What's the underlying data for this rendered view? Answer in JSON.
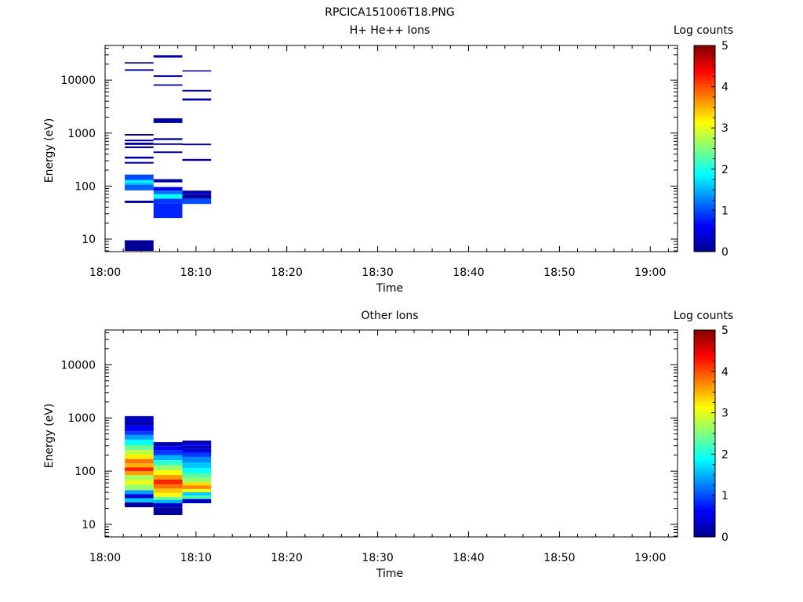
{
  "figure_title": "RPCICA151006T18.PNG",
  "chart_data": [
    {
      "type": "heatmap",
      "title": "H+ He++ Ions",
      "xlabel": "Time",
      "ylabel": "Energy (eV)",
      "y_scale": "log",
      "ylim": [
        5.8,
        45000
      ],
      "xlim": [
        "18:00",
        "19:03"
      ],
      "x_ticks": [
        "18:00",
        "18:10",
        "18:20",
        "18:30",
        "18:40",
        "18:50",
        "19:00"
      ],
      "y_ticks": [
        "10",
        "100",
        "1000",
        "10000"
      ],
      "colorbar": {
        "label": "Log counts",
        "range": [
          0,
          5
        ],
        "ticks": [
          "0",
          "1",
          "2",
          "3",
          "4",
          "5"
        ]
      },
      "columns": [
        {
          "t_start": "18:02:10",
          "t_end": "18:05:20",
          "cells": [
            {
              "e_low": 6,
              "e_high": 9.5,
              "log_counts": 0.05
            },
            {
              "e_low": 48,
              "e_high": 53,
              "log_counts": 0.1
            },
            {
              "e_low": 83,
              "e_high": 105,
              "log_counts": 1.1
            },
            {
              "e_low": 105,
              "e_high": 115,
              "log_counts": 1.5
            },
            {
              "e_low": 115,
              "e_high": 130,
              "log_counts": 1.8
            },
            {
              "e_low": 130,
              "e_high": 165,
              "log_counts": 1.0
            },
            {
              "e_low": 265,
              "e_high": 285,
              "log_counts": 0.1
            },
            {
              "e_low": 330,
              "e_high": 360,
              "log_counts": 0.1
            },
            {
              "e_low": 520,
              "e_high": 560,
              "log_counts": 0.1
            },
            {
              "e_low": 600,
              "e_high": 660,
              "log_counts": 0.1
            },
            {
              "e_low": 700,
              "e_high": 750,
              "log_counts": 0.1
            },
            {
              "e_low": 900,
              "e_high": 960,
              "log_counts": 0.1
            },
            {
              "e_low": 15000,
              "e_high": 16000,
              "log_counts": 0.1
            },
            {
              "e_low": 20500,
              "e_high": 21800,
              "log_counts": 0.1
            }
          ]
        },
        {
          "t_start": "18:05:20",
          "t_end": "18:08:30",
          "cells": [
            {
              "e_low": 25,
              "e_high": 47,
              "log_counts": 0.8
            },
            {
              "e_low": 47,
              "e_high": 58,
              "log_counts": 0.9
            },
            {
              "e_low": 58,
              "e_high": 70,
              "log_counts": 1.9
            },
            {
              "e_low": 70,
              "e_high": 82,
              "log_counts": 1.2
            },
            {
              "e_low": 82,
              "e_high": 96,
              "log_counts": 0.5
            },
            {
              "e_low": 118,
              "e_high": 135,
              "log_counts": 0.1
            },
            {
              "e_low": 420,
              "e_high": 450,
              "log_counts": 0.1
            },
            {
              "e_low": 600,
              "e_high": 640,
              "log_counts": 0.1
            },
            {
              "e_low": 740,
              "e_high": 800,
              "log_counts": 0.1
            },
            {
              "e_low": 1550,
              "e_high": 1900,
              "log_counts": 0.1
            },
            {
              "e_low": 7800,
              "e_high": 8300,
              "log_counts": 0.1
            },
            {
              "e_low": 11500,
              "e_high": 12300,
              "log_counts": 0.1
            },
            {
              "e_low": 26500,
              "e_high": 29500,
              "log_counts": 0.1
            }
          ]
        },
        {
          "t_start": "18:08:30",
          "t_end": "18:11:40",
          "cells": [
            {
              "e_low": 46,
              "e_high": 58,
              "log_counts": 1.0
            },
            {
              "e_low": 58,
              "e_high": 70,
              "log_counts": 0.1
            },
            {
              "e_low": 70,
              "e_high": 82,
              "log_counts": 0.2
            },
            {
              "e_low": 300,
              "e_high": 325,
              "log_counts": 0.1
            },
            {
              "e_low": 590,
              "e_high": 630,
              "log_counts": 0.1
            },
            {
              "e_low": 4100,
              "e_high": 4500,
              "log_counts": 0.1
            },
            {
              "e_low": 6100,
              "e_high": 6500,
              "log_counts": 0.1
            },
            {
              "e_low": 14500,
              "e_high": 15300,
              "log_counts": 0.1
            }
          ]
        }
      ]
    },
    {
      "type": "heatmap",
      "title": "Other Ions",
      "xlabel": "Time",
      "ylabel": "Energy (eV)",
      "y_scale": "log",
      "ylim": [
        5.8,
        45000
      ],
      "xlim": [
        "18:00",
        "19:03"
      ],
      "x_ticks": [
        "18:00",
        "18:10",
        "18:20",
        "18:30",
        "18:40",
        "18:50",
        "19:00"
      ],
      "y_ticks": [
        "10",
        "100",
        "1000",
        "10000"
      ],
      "colorbar": {
        "label": "Log counts",
        "range": [
          0,
          5
        ],
        "ticks": [
          "0",
          "1",
          "2",
          "3",
          "4",
          "5"
        ]
      },
      "columns": [
        {
          "t_start": "18:02:10",
          "t_end": "18:05:20",
          "cells": [
            {
              "e_low": 21,
              "e_high": 26,
              "log_counts": 0.1
            },
            {
              "e_low": 26,
              "e_high": 31,
              "log_counts": 1.6
            },
            {
              "e_low": 31,
              "e_high": 37,
              "log_counts": 0.4
            },
            {
              "e_low": 37,
              "e_high": 44,
              "log_counts": 1.4
            },
            {
              "e_low": 44,
              "e_high": 55,
              "log_counts": 2.6
            },
            {
              "e_low": 55,
              "e_high": 68,
              "log_counts": 3.0
            },
            {
              "e_low": 68,
              "e_high": 84,
              "log_counts": 2.7
            },
            {
              "e_low": 84,
              "e_high": 100,
              "log_counts": 3.6
            },
            {
              "e_low": 100,
              "e_high": 118,
              "log_counts": 4.2
            },
            {
              "e_low": 118,
              "e_high": 140,
              "log_counts": 3.5
            },
            {
              "e_low": 140,
              "e_high": 170,
              "log_counts": 3.8
            },
            {
              "e_low": 170,
              "e_high": 205,
              "log_counts": 3.2
            },
            {
              "e_low": 205,
              "e_high": 250,
              "log_counts": 2.8
            },
            {
              "e_low": 250,
              "e_high": 310,
              "log_counts": 2.4
            },
            {
              "e_low": 310,
              "e_high": 390,
              "log_counts": 1.9
            },
            {
              "e_low": 390,
              "e_high": 480,
              "log_counts": 1.4
            },
            {
              "e_low": 480,
              "e_high": 560,
              "log_counts": 0.9
            },
            {
              "e_low": 560,
              "e_high": 720,
              "log_counts": 0.6
            },
            {
              "e_low": 720,
              "e_high": 850,
              "log_counts": 0.15
            },
            {
              "e_low": 850,
              "e_high": 1080,
              "log_counts": 0.3
            }
          ]
        },
        {
          "t_start": "18:05:20",
          "t_end": "18:08:30",
          "cells": [
            {
              "e_low": 15,
              "e_high": 21,
              "log_counts": 0.1
            },
            {
              "e_low": 21,
              "e_high": 25,
              "log_counts": 0.3
            },
            {
              "e_low": 25,
              "e_high": 29,
              "log_counts": 1.5
            },
            {
              "e_low": 29,
              "e_high": 33,
              "log_counts": 2.4
            },
            {
              "e_low": 33,
              "e_high": 39,
              "log_counts": 3.1
            },
            {
              "e_low": 39,
              "e_high": 47,
              "log_counts": 3.4
            },
            {
              "e_low": 47,
              "e_high": 57,
              "log_counts": 3.8
            },
            {
              "e_low": 57,
              "e_high": 70,
              "log_counts": 4.2
            },
            {
              "e_low": 70,
              "e_high": 85,
              "log_counts": 3.6
            },
            {
              "e_low": 85,
              "e_high": 105,
              "log_counts": 3.1
            },
            {
              "e_low": 105,
              "e_high": 130,
              "log_counts": 2.6
            },
            {
              "e_low": 130,
              "e_high": 160,
              "log_counts": 2.1
            },
            {
              "e_low": 160,
              "e_high": 200,
              "log_counts": 1.5
            },
            {
              "e_low": 200,
              "e_high": 245,
              "log_counts": 0.9
            },
            {
              "e_low": 245,
              "e_high": 290,
              "log_counts": 0.6
            },
            {
              "e_low": 290,
              "e_high": 350,
              "log_counts": 0.2
            }
          ]
        },
        {
          "t_start": "18:08:30",
          "t_end": "18:11:40",
          "cells": [
            {
              "e_low": 25,
              "e_high": 30,
              "log_counts": 0.3
            },
            {
              "e_low": 30,
              "e_high": 35,
              "log_counts": 2.2
            },
            {
              "e_low": 35,
              "e_high": 40,
              "log_counts": 1.6
            },
            {
              "e_low": 40,
              "e_high": 46,
              "log_counts": 3.0
            },
            {
              "e_low": 46,
              "e_high": 54,
              "log_counts": 3.7
            },
            {
              "e_low": 54,
              "e_high": 62,
              "log_counts": 3.3
            },
            {
              "e_low": 62,
              "e_high": 75,
              "log_counts": 2.6
            },
            {
              "e_low": 75,
              "e_high": 92,
              "log_counts": 2.3
            },
            {
              "e_low": 92,
              "e_high": 115,
              "log_counts": 1.9
            },
            {
              "e_low": 115,
              "e_high": 145,
              "log_counts": 1.6
            },
            {
              "e_low": 145,
              "e_high": 185,
              "log_counts": 1.3
            },
            {
              "e_low": 185,
              "e_high": 220,
              "log_counts": 0.9
            },
            {
              "e_low": 220,
              "e_high": 260,
              "log_counts": 0.5
            },
            {
              "e_low": 260,
              "e_high": 300,
              "log_counts": 0.2
            },
            {
              "e_low": 300,
              "e_high": 330,
              "log_counts": 0.6
            },
            {
              "e_low": 330,
              "e_high": 375,
              "log_counts": 0.1
            }
          ]
        }
      ]
    }
  ]
}
